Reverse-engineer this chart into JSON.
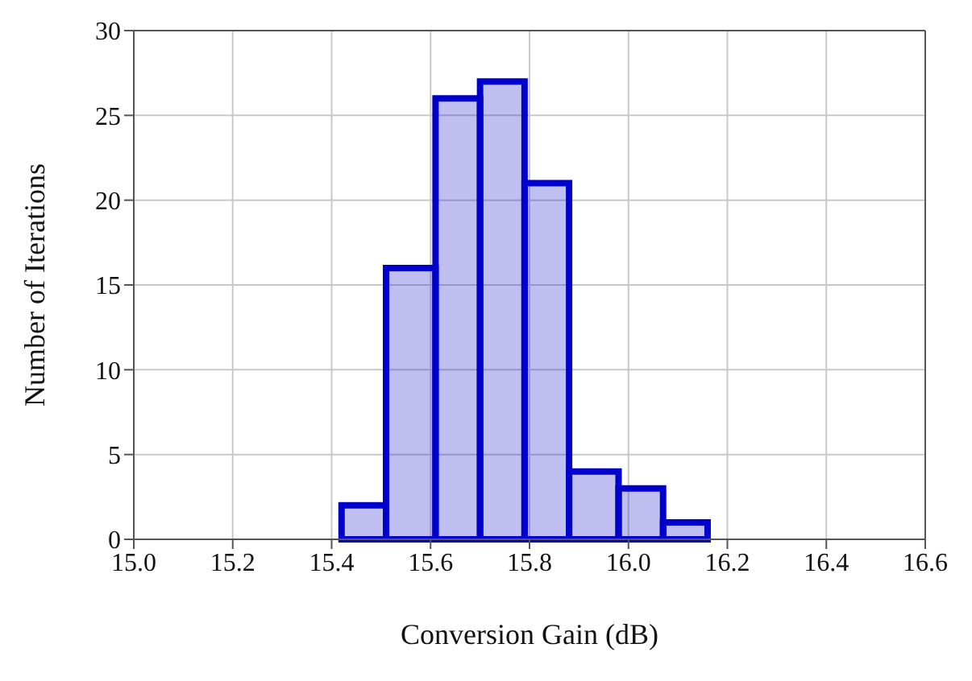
{
  "chart_data": {
    "type": "histogram",
    "xlabel": "Conversion Gain (dB)",
    "ylabel": "Number of Iterations",
    "bins": [
      15.42,
      15.51,
      15.61,
      15.7,
      15.79,
      15.88,
      15.98,
      16.07,
      16.16
    ],
    "values": [
      2,
      16,
      26,
      27,
      21,
      4,
      3,
      1
    ],
    "color": "#0000cc",
    "xlim": [
      15.0,
      16.6
    ],
    "xticks": [
      {
        "value": 15,
        "label": "15.0"
      },
      15.2,
      15.4,
      15.6,
      15.8,
      {
        "value": 16,
        "label": "16.0"
      },
      16.2,
      16.4,
      16.6
    ],
    "ylim": [
      0,
      30
    ],
    "yticks": [
      0,
      5,
      10,
      15,
      20,
      25,
      30
    ],
    "grid": true
  }
}
